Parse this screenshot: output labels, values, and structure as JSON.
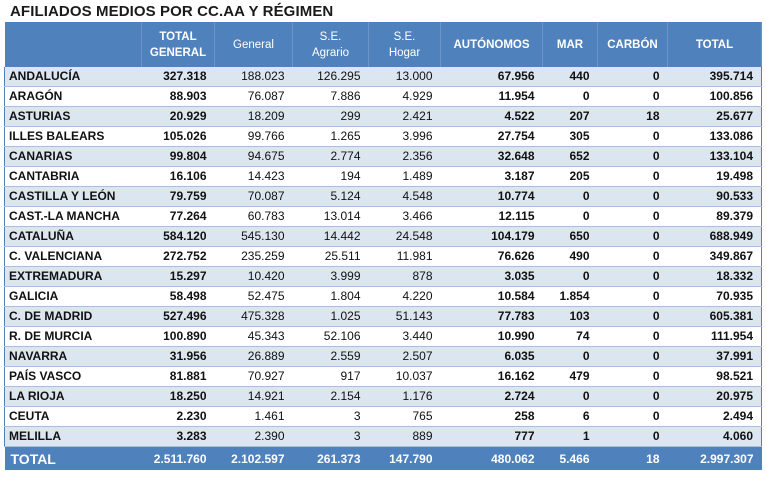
{
  "title": "AFILIADOS MEDIOS POR CC.AA Y RÉGIMEN",
  "headers": [
    {
      "line1": "",
      "line2": ""
    },
    {
      "line1": "TOTAL",
      "line2": "GENERAL"
    },
    {
      "line1": "General",
      "line2": ""
    },
    {
      "line1": "S.E.",
      "line2": "Agrario"
    },
    {
      "line1": "S.E.",
      "line2": "Hogar"
    },
    {
      "line1": "AUTÓNOMOS",
      "line2": ""
    },
    {
      "line1": "MAR",
      "line2": ""
    },
    {
      "line1": "CARBÓN",
      "line2": ""
    },
    {
      "line1": "TOTAL",
      "line2": ""
    }
  ],
  "rows": [
    {
      "region": "ANDALUCÍA",
      "total_general": "327.318",
      "general": "188.023",
      "agrario": "126.295",
      "hogar": "13.000",
      "autonomos": "67.956",
      "mar": "440",
      "carbon": "0",
      "total": "395.714"
    },
    {
      "region": "ARAGÓN",
      "total_general": "88.903",
      "general": "76.087",
      "agrario": "7.886",
      "hogar": "4.929",
      "autonomos": "11.954",
      "mar": "0",
      "carbon": "0",
      "total": "100.856"
    },
    {
      "region": "ASTURIAS",
      "total_general": "20.929",
      "general": "18.209",
      "agrario": "299",
      "hogar": "2.421",
      "autonomos": "4.522",
      "mar": "207",
      "carbon": "18",
      "total": "25.677"
    },
    {
      "region": "ILLES BALEARS",
      "total_general": "105.026",
      "general": "99.766",
      "agrario": "1.265",
      "hogar": "3.996",
      "autonomos": "27.754",
      "mar": "305",
      "carbon": "0",
      "total": "133.086"
    },
    {
      "region": "CANARIAS",
      "total_general": "99.804",
      "general": "94.675",
      "agrario": "2.774",
      "hogar": "2.356",
      "autonomos": "32.648",
      "mar": "652",
      "carbon": "0",
      "total": "133.104"
    },
    {
      "region": "CANTABRIA",
      "total_general": "16.106",
      "general": "14.423",
      "agrario": "194",
      "hogar": "1.489",
      "autonomos": "3.187",
      "mar": "205",
      "carbon": "0",
      "total": "19.498"
    },
    {
      "region": "CASTILLA Y LEÓN",
      "total_general": "79.759",
      "general": "70.087",
      "agrario": "5.124",
      "hogar": "4.548",
      "autonomos": "10.774",
      "mar": "0",
      "carbon": "0",
      "total": "90.533"
    },
    {
      "region": "CAST.-LA MANCHA",
      "total_general": "77.264",
      "general": "60.783",
      "agrario": "13.014",
      "hogar": "3.466",
      "autonomos": "12.115",
      "mar": "0",
      "carbon": "0",
      "total": "89.379"
    },
    {
      "region": "CATALUÑA",
      "total_general": "584.120",
      "general": "545.130",
      "agrario": "14.442",
      "hogar": "24.548",
      "autonomos": "104.179",
      "mar": "650",
      "carbon": "0",
      "total": "688.949"
    },
    {
      "region": "C. VALENCIANA",
      "total_general": "272.752",
      "general": "235.259",
      "agrario": "25.511",
      "hogar": "11.981",
      "autonomos": "76.626",
      "mar": "490",
      "carbon": "0",
      "total": "349.867"
    },
    {
      "region": "EXTREMADURA",
      "total_general": "15.297",
      "general": "10.420",
      "agrario": "3.999",
      "hogar": "878",
      "autonomos": "3.035",
      "mar": "0",
      "carbon": "0",
      "total": "18.332"
    },
    {
      "region": "GALICIA",
      "total_general": "58.498",
      "general": "52.475",
      "agrario": "1.804",
      "hogar": "4.220",
      "autonomos": "10.584",
      "mar": "1.854",
      "carbon": "0",
      "total": "70.935"
    },
    {
      "region": "C. DE MADRID",
      "total_general": "527.496",
      "general": "475.328",
      "agrario": "1.025",
      "hogar": "51.143",
      "autonomos": "77.783",
      "mar": "103",
      "carbon": "0",
      "total": "605.381"
    },
    {
      "region": "R. DE MURCIA",
      "total_general": "100.890",
      "general": "45.343",
      "agrario": "52.106",
      "hogar": "3.440",
      "autonomos": "10.990",
      "mar": "74",
      "carbon": "0",
      "total": "111.954"
    },
    {
      "region": "NAVARRA",
      "total_general": "31.956",
      "general": "26.889",
      "agrario": "2.559",
      "hogar": "2.507",
      "autonomos": "6.035",
      "mar": "0",
      "carbon": "0",
      "total": "37.991"
    },
    {
      "region": "PAÍS VASCO",
      "total_general": "81.881",
      "general": "70.927",
      "agrario": "917",
      "hogar": "10.037",
      "autonomos": "16.162",
      "mar": "479",
      "carbon": "0",
      "total": "98.521"
    },
    {
      "region": "LA RIOJA",
      "total_general": "18.250",
      "general": "14.921",
      "agrario": "2.154",
      "hogar": "1.176",
      "autonomos": "2.724",
      "mar": "0",
      "carbon": "0",
      "total": "20.975"
    },
    {
      "region": "CEUTA",
      "total_general": "2.230",
      "general": "1.461",
      "agrario": "3",
      "hogar": "765",
      "autonomos": "258",
      "mar": "6",
      "carbon": "0",
      "total": "2.494"
    },
    {
      "region": "MELILLA",
      "total_general": "3.283",
      "general": "2.390",
      "agrario": "3",
      "hogar": "889",
      "autonomos": "777",
      "mar": "1",
      "carbon": "0",
      "total": "4.060"
    }
  ],
  "totals": {
    "label": "TOTAL",
    "total_general": "2.511.760",
    "general": "2.102.597",
    "agrario": "261.373",
    "hogar": "147.790",
    "autonomos": "480.062",
    "mar": "5.466",
    "carbon": "18",
    "total": "2.997.307"
  }
}
